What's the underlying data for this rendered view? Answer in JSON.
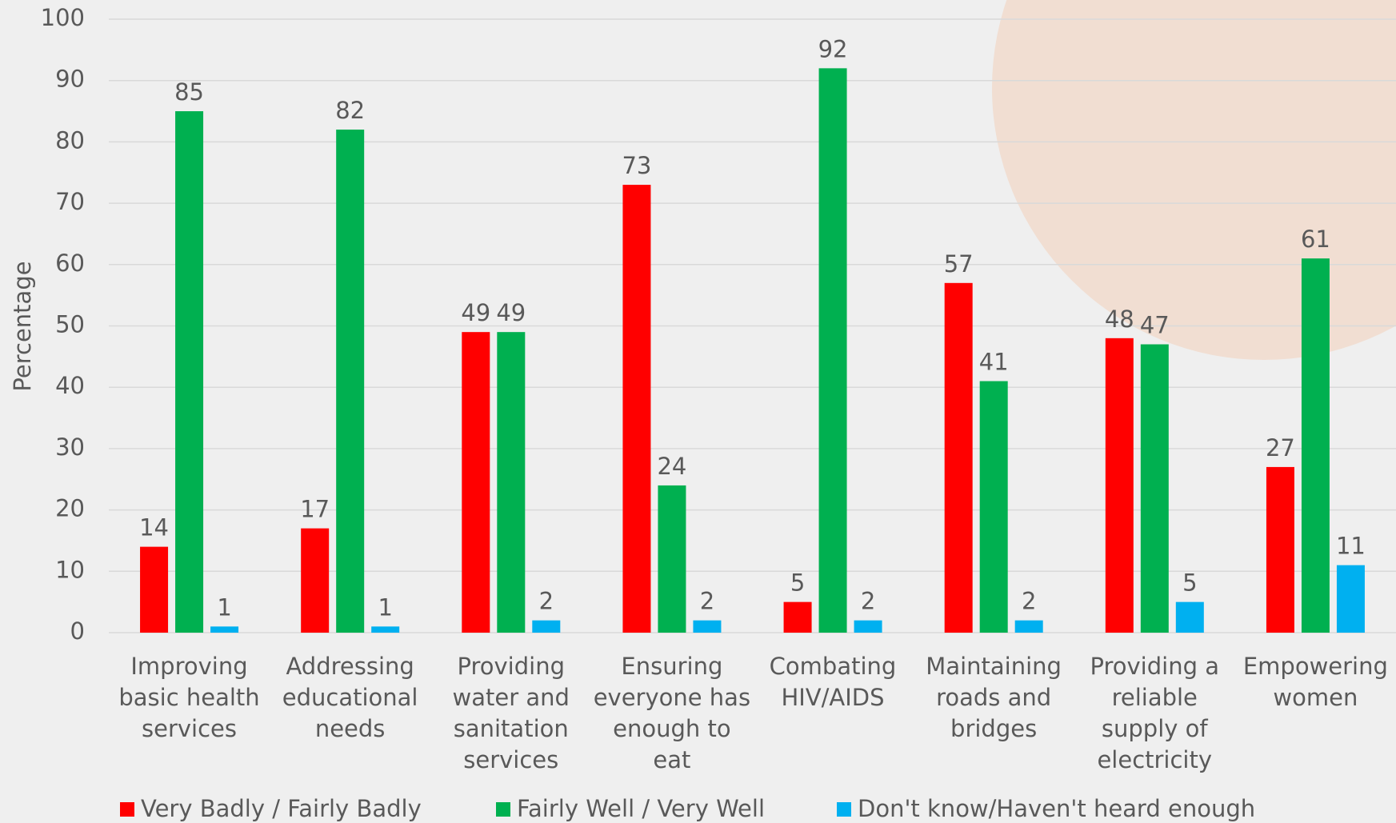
{
  "chart_data": {
    "type": "bar",
    "y_axis_label": "Percentage",
    "categories": [
      "Improving basic health services",
      "Addressing educational needs",
      "Providing water and sanitation services",
      "Ensuring everyone has enough to eat",
      "Combating HIV/AIDS",
      "Maintaining roads and bridges",
      "Providing a reliable supply of electricity",
      "Empowering women"
    ],
    "series": [
      {
        "name": "Very Badly / Fairly Badly",
        "color": "#ff0000",
        "values": [
          14,
          17,
          49,
          73,
          5,
          57,
          48,
          27
        ]
      },
      {
        "name": "Fairly Well / Very Well",
        "color": "#00b050",
        "values": [
          85,
          82,
          49,
          24,
          92,
          41,
          47,
          61
        ]
      },
      {
        "name": "Don't know/Haven't heard enough",
        "color": "#00b0f0",
        "values": [
          1,
          1,
          2,
          2,
          2,
          2,
          5,
          11
        ]
      }
    ],
    "ylim": [
      0,
      100
    ],
    "yticks": [
      0,
      10,
      20,
      30,
      40,
      50,
      60,
      70,
      80,
      90,
      100
    ],
    "grid": true,
    "legend": "bottom"
  }
}
